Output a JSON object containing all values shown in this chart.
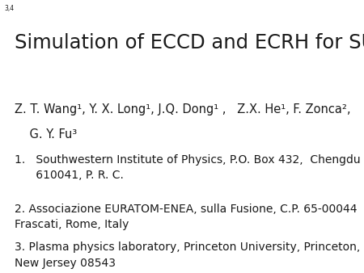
{
  "title": "Simulation of ECCD and ECRH for SUNIST",
  "slide_number": "3,4",
  "authors_line1": "Z. T. Wang¹, Y. X. Long¹, J.Q. Dong¹ ,   Z.X. He¹, F. Zonca²,",
  "authors_line2": "    G. Y. Fu³",
  "affil1": "1.   Southwestern Institute of Physics, P.O. Box 432,  Chengdu\n      610041, P. R. C.",
  "affil2": "2. Associazione EURATOM-ENEA, sulla Fusione, C.P. 65-00044\nFrascati, Rome, Italy",
  "affil3": "3. Plasma physics laboratory, Princeton University, Princeton,\nNew Jersey 08543",
  "bg_color": "#ffffff",
  "text_color": "#1a1a1a",
  "title_fontsize": 17.5,
  "author_fontsize": 10.5,
  "affil_fontsize": 10.0,
  "slide_num_fontsize": 5.5
}
